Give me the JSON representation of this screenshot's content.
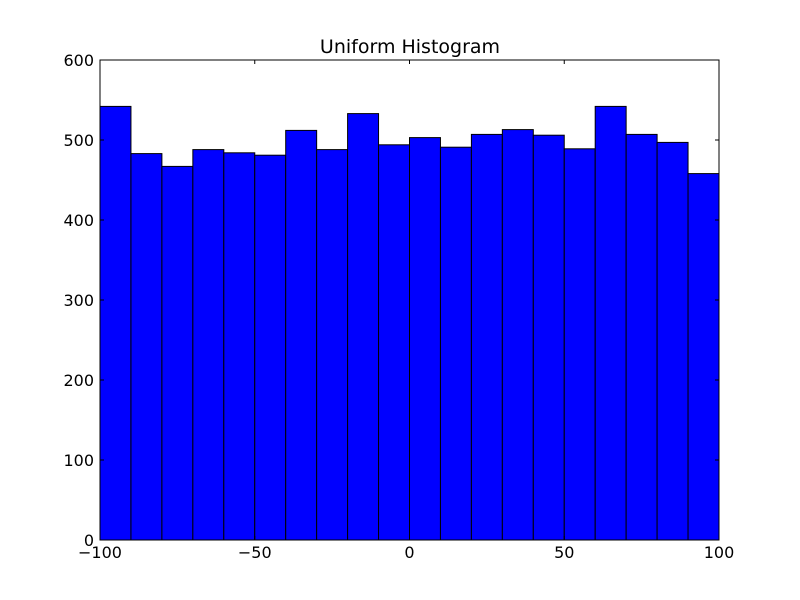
{
  "chart_data": {
    "type": "bar",
    "title": "Uniform Histogram",
    "xlabel": "",
    "ylabel": "",
    "bin_edges": [
      -100,
      -90,
      -80,
      -70,
      -60,
      -50,
      -40,
      -30,
      -20,
      -10,
      0,
      10,
      20,
      30,
      40,
      50,
      60,
      70,
      80,
      90,
      100
    ],
    "values": [
      542,
      483,
      467,
      488,
      484,
      481,
      512,
      488,
      533,
      494,
      503,
      491,
      507,
      513,
      506,
      489,
      542,
      507,
      497,
      458
    ],
    "xlim": [
      -100,
      100
    ],
    "ylim": [
      0,
      600
    ],
    "xticks": [
      -100,
      -50,
      0,
      50,
      100
    ],
    "xtick_labels": [
      "−100",
      "−50",
      "0",
      "50",
      "100"
    ],
    "yticks": [
      0,
      100,
      200,
      300,
      400,
      500,
      600
    ],
    "ytick_labels": [
      "0",
      "100",
      "200",
      "300",
      "400",
      "500",
      "600"
    ],
    "grid": false,
    "bar_color": "#0000ff",
    "edge_color": "#000000"
  }
}
